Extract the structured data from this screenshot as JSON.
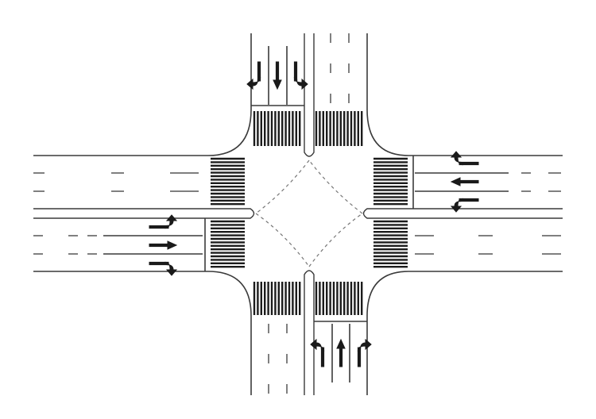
{
  "diagram": {
    "type": "four-leg signalized intersection plan view",
    "colors": {
      "line": "#3a3a3a",
      "marking": "#1c1c1c",
      "background": "#ffffff"
    },
    "approaches": [
      {
        "name": "north",
        "lane_movements": [
          "left",
          "through",
          "right"
        ]
      },
      {
        "name": "south",
        "lane_movements": [
          "left",
          "through",
          "right"
        ]
      },
      {
        "name": "east",
        "lane_movements": [
          "left",
          "through",
          "right"
        ]
      },
      {
        "name": "west",
        "lane_movements": [
          "left",
          "through",
          "right"
        ]
      }
    ],
    "icons": [
      "left-turn-arrow-icon",
      "through-arrow-icon",
      "right-turn-arrow-icon"
    ]
  }
}
